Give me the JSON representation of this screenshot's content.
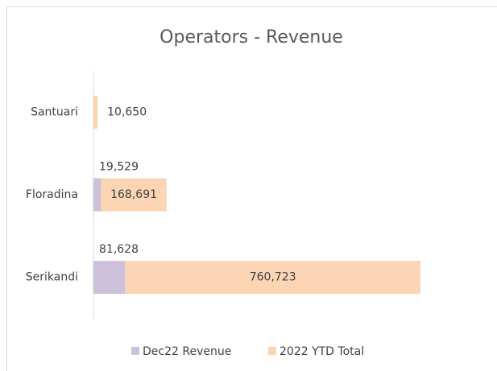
{
  "chart_data": {
    "type": "stacked-bar-horizontal",
    "title": "Operators - Revenue",
    "categories": [
      "Santuari",
      "Floradina",
      "Serikandi"
    ],
    "series": [
      {
        "name": "Dec22 Revenue",
        "color": "#ccc0da",
        "values": [
          null,
          19529,
          81628
        ],
        "value_labels": [
          null,
          "19,529",
          "81,628"
        ]
      },
      {
        "name": "2022 YTD Total",
        "color": "#fcd5b5",
        "values": [
          10650,
          168691,
          760723
        ],
        "value_labels": [
          "10,650",
          "168,691",
          "760,723"
        ]
      }
    ],
    "legend": "bottom"
  }
}
